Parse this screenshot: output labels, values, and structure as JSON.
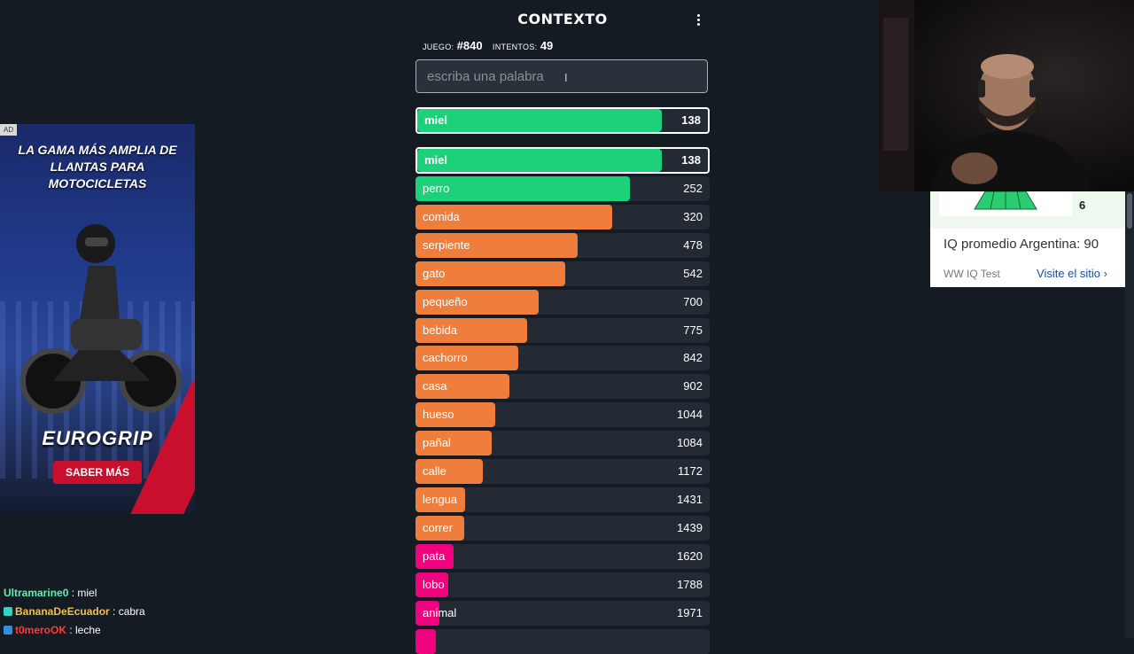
{
  "game": {
    "title": "CONTEXTO",
    "game_label": "JUEGO:",
    "game_number": "#840",
    "attempts_label": "INTENTOS:",
    "attempts": "49",
    "input_placeholder": "escriba una palabra",
    "last_guess": {
      "word": "miel",
      "rank": "138",
      "fill": 0.84,
      "color": "#1cd17a"
    },
    "guesses": [
      {
        "word": "miel",
        "rank": "138",
        "fill": 0.84,
        "color": "#1cd17a",
        "highlight": true
      },
      {
        "word": "perro",
        "rank": "252",
        "fill": 0.73,
        "color": "#1cd17a"
      },
      {
        "word": "comida",
        "rank": "320",
        "fill": 0.67,
        "color": "#ef7d3b"
      },
      {
        "word": "serpiente",
        "rank": "478",
        "fill": 0.55,
        "color": "#ef7d3b"
      },
      {
        "word": "gato",
        "rank": "542",
        "fill": 0.51,
        "color": "#ef7d3b"
      },
      {
        "word": "pequeño",
        "rank": "700",
        "fill": 0.42,
        "color": "#ef7d3b"
      },
      {
        "word": "bebida",
        "rank": "775",
        "fill": 0.38,
        "color": "#ef7d3b"
      },
      {
        "word": "cachorro",
        "rank": "842",
        "fill": 0.35,
        "color": "#ef7d3b"
      },
      {
        "word": "casa",
        "rank": "902",
        "fill": 0.32,
        "color": "#ef7d3b"
      },
      {
        "word": "hueso",
        "rank": "1044",
        "fill": 0.27,
        "color": "#ef7d3b"
      },
      {
        "word": "pañal",
        "rank": "1084",
        "fill": 0.26,
        "color": "#ef7d3b"
      },
      {
        "word": "calle",
        "rank": "1172",
        "fill": 0.23,
        "color": "#ef7d3b"
      },
      {
        "word": "lengua",
        "rank": "1431",
        "fill": 0.17,
        "color": "#ef7d3b"
      },
      {
        "word": "correr",
        "rank": "1439",
        "fill": 0.165,
        "color": "#ef7d3b"
      },
      {
        "word": "pata",
        "rank": "1620",
        "fill": 0.13,
        "color": "#f0027f"
      },
      {
        "word": "lobo",
        "rank": "1788",
        "fill": 0.11,
        "color": "#f0027f"
      },
      {
        "word": "animal",
        "rank": "1971",
        "fill": 0.08,
        "color": "#f0027f"
      },
      {
        "word": "",
        "rank": "",
        "fill": 0.07,
        "color": "#f0027f"
      }
    ]
  },
  "ad": {
    "badge": "AD",
    "headline": "LA GAMA MÁS AMPLIA DE LLANTAS PARA MOTOCICLETAS",
    "brand": "EUROGRIP",
    "cta": "SABER MÁS"
  },
  "chat": [
    {
      "user": "Ultramarine0",
      "user_color": "#5ef0b0",
      "text": " : miel",
      "emote": false
    },
    {
      "user": "BananaDeEcuador",
      "user_color": "#f0c050",
      "text": " : cabra",
      "emote": true,
      "emote_color": "#2fd6c8"
    },
    {
      "user": "t0meroOK",
      "user_color": "#ff3a3a",
      "text": " : leche",
      "emote": true,
      "emote_color": "#2f8fe0"
    }
  ],
  "side_ad": {
    "score": "6",
    "headline": "IQ promedio Argentina: 90",
    "source": "WW IQ Test",
    "visit": "Visite el sitio"
  }
}
